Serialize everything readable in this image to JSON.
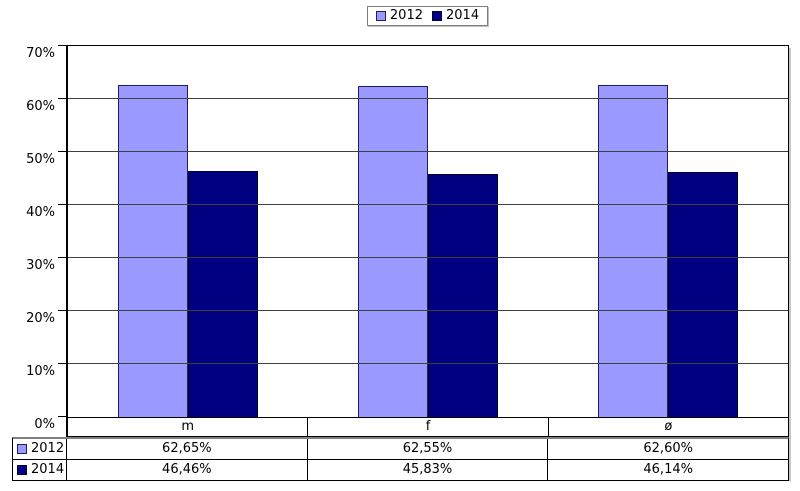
{
  "chart_data": {
    "type": "bar",
    "title": "",
    "categories": [
      "m",
      "f",
      "ø"
    ],
    "series": [
      {
        "name": "2012",
        "values": [
          62.65,
          62.55,
          62.6
        ],
        "labels": [
          "62,65%",
          "62,55%",
          "62,60%"
        ],
        "color": "#9999FF",
        "border_color": "#202060"
      },
      {
        "name": "2014",
        "values": [
          46.46,
          45.83,
          46.14
        ],
        "labels": [
          "46,46%",
          "45,83%",
          "46,14%"
        ],
        "color": "#000080",
        "border_color": "#000030"
      }
    ],
    "ylim": [
      0,
      70
    ],
    "ytick_labels": [
      "0%",
      "10%",
      "20%",
      "30%",
      "40%",
      "50%",
      "60%",
      "70%"
    ],
    "grid": true,
    "gridline_color": "#404040",
    "legend_position": "top-center",
    "has_data_table": true
  }
}
